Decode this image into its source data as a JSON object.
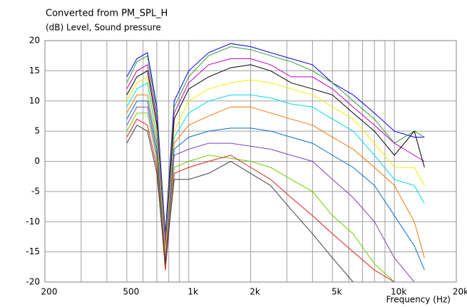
{
  "chart_data": {
    "type": "line",
    "title": "Converted from PM_SPL_H",
    "ylabel": "(dB)  Level, Sound pressure",
    "xlabel": "Frequency  (Hz)",
    "xscale": "log",
    "grid": true,
    "xlim": [
      200,
      20000
    ],
    "ylim": [
      -20,
      20
    ],
    "xticks": [
      200,
      500,
      {
        "value": 1000,
        "label": "1k"
      },
      {
        "value": 2000,
        "label": "2k"
      },
      {
        "value": 5000,
        "label": "5k"
      },
      {
        "value": 10000,
        "label": "10k"
      },
      {
        "value": 20000,
        "label": "20k"
      }
    ],
    "xgrid": [
      300,
      400,
      600,
      700,
      800,
      900,
      3000,
      4000,
      6000,
      7000,
      8000,
      9000
    ],
    "yticks": [
      20,
      15,
      10,
      5,
      0,
      -5,
      -10,
      -15,
      -20
    ],
    "x": [
      500,
      560,
      630,
      700,
      770,
      850,
      1000,
      1250,
      1600,
      2000,
      2500,
      3150,
      4000,
      5000,
      6300,
      8000,
      10000,
      12500,
      14000
    ],
    "series": [
      {
        "color": "#0000ff",
        "values": [
          14,
          17,
          18,
          9,
          -12,
          10,
          15,
          18,
          19.5,
          19,
          18,
          17,
          16,
          13,
          11,
          8,
          5,
          4,
          4
        ]
      },
      {
        "color": "#30a030",
        "values": [
          13,
          16.5,
          17.5,
          8,
          -13,
          9,
          14,
          17.5,
          19,
          18.5,
          17.5,
          16.5,
          15,
          13,
          10,
          7,
          3,
          5,
          4
        ]
      },
      {
        "color": "#c000c0",
        "values": [
          12,
          15,
          16,
          7,
          -14,
          8,
          13,
          16,
          17,
          17,
          16,
          14,
          14,
          12,
          9,
          6,
          3,
          1,
          0
        ]
      },
      {
        "color": "#000000",
        "values": [
          11,
          14,
          15,
          6,
          -15,
          7,
          12,
          14,
          15.5,
          16,
          15,
          13,
          12,
          11,
          8,
          5,
          1,
          5,
          -1
        ]
      },
      {
        "color": "#f0f000",
        "values": [
          10,
          13,
          14,
          5,
          -15,
          5,
          10,
          12,
          13,
          13.5,
          13,
          12,
          11,
          9,
          7,
          3,
          -1,
          -1,
          -4
        ]
      },
      {
        "color": "#00d8f0",
        "values": [
          9,
          12,
          13,
          4,
          -16,
          4,
          8,
          10,
          11,
          11,
          10.5,
          9.5,
          9,
          7,
          5,
          1,
          -3,
          -4,
          -7
        ]
      },
      {
        "color": "#f07800",
        "values": [
          8,
          11,
          11,
          3,
          -16,
          3,
          6,
          7.5,
          9,
          9,
          8,
          7,
          6,
          4,
          2,
          -1,
          -4,
          -10,
          -16
        ]
      },
      {
        "color": "#0070d0",
        "values": [
          7,
          10,
          10,
          2,
          -17,
          2,
          4,
          5,
          5.5,
          5.5,
          5,
          4,
          3,
          1,
          -1,
          -4,
          -9,
          -14,
          -18
        ]
      },
      {
        "color": "#8040c0",
        "values": [
          6,
          9,
          9,
          1,
          -17,
          1,
          2,
          3,
          3,
          2.5,
          2,
          1,
          0,
          -3,
          -6,
          -10,
          -16,
          -20,
          -20
        ]
      },
      {
        "color": "#70d000",
        "values": [
          5,
          8,
          8,
          0,
          -18,
          -1,
          0,
          1,
          0.5,
          0,
          -1,
          -3,
          -5,
          -9,
          -12,
          -17,
          -20,
          -20,
          -20
        ]
      },
      {
        "color": "#e02020",
        "values": [
          4,
          7,
          6,
          -1,
          -18,
          -2,
          -1,
          0,
          1,
          -1,
          -3,
          -6,
          -9,
          -12,
          -15,
          -18,
          -20,
          -20,
          -20
        ]
      },
      {
        "color": "#404040",
        "values": [
          3,
          6,
          5,
          -2,
          -17,
          -3,
          -3,
          -2,
          0,
          -2,
          -4,
          -8,
          -12,
          -16,
          -20,
          -20,
          -20,
          -20,
          -20
        ]
      }
    ]
  }
}
